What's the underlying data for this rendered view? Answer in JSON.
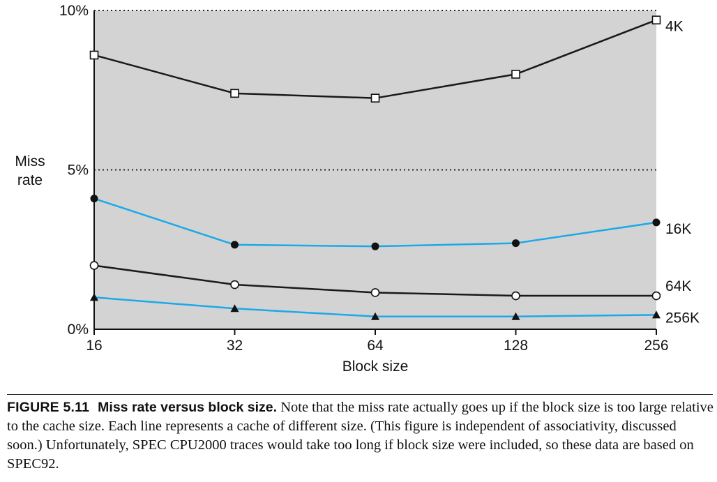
{
  "chart_data": {
    "type": "line",
    "ylabel": "Miss\nrate",
    "xlabel": "Block size",
    "categories": [
      "16",
      "32",
      "64",
      "128",
      "256"
    ],
    "ylim": [
      0,
      10
    ],
    "y_ticks": [
      "0%",
      "5%",
      "10%"
    ],
    "grid": "dotted horizontal lines at 5% and 10%",
    "background_color": "#d3d3d3",
    "series": [
      {
        "name": "4K",
        "values": [
          8.6,
          7.4,
          7.25,
          8.0,
          9.7
        ],
        "line_color": "#1a1a1a",
        "marker": "open-square"
      },
      {
        "name": "16K",
        "values": [
          4.1,
          2.65,
          2.6,
          2.7,
          3.35
        ],
        "line_color": "#1ba9e8",
        "marker": "filled-circle"
      },
      {
        "name": "64K",
        "values": [
          2.0,
          1.4,
          1.15,
          1.05,
          1.05
        ],
        "line_color": "#1a1a1a",
        "marker": "open-circle"
      },
      {
        "name": "256K",
        "values": [
          1.0,
          0.65,
          0.4,
          0.4,
          0.45
        ],
        "line_color": "#1ba9e8",
        "marker": "filled-triangle"
      }
    ]
  },
  "caption": {
    "label": "FIGURE 5.11",
    "title": "Miss rate versus block size.",
    "body": "Note that the miss rate actually goes up if the block size is too large relative to the cache size. Each line represents a cache of different size. (This figure is independent of associativity, discussed soon.) Unfortunately, SPEC CPU2000 traces would take too long if block size were included, so these data are based on SPEC92."
  }
}
